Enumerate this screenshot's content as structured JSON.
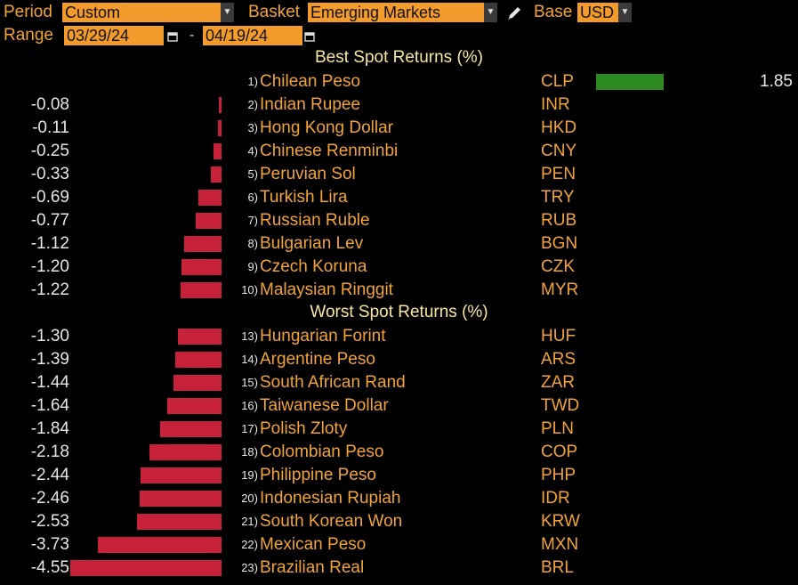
{
  "toolbar": {
    "period_label": "Period",
    "period_value": "Custom",
    "basket_label": "Basket",
    "basket_value": "Emerging Markets",
    "base_label": "Base",
    "base_value": "USD",
    "range_label": "Range",
    "range_start": "03/29/24",
    "range_end": "04/19/24",
    "range_sep": "-",
    "icons": [
      "chevron-down-icon",
      "pencil-icon",
      "calendar-icon"
    ]
  },
  "colors": {
    "accent": "#f29b2c",
    "negative": "#c8213a",
    "positive": "#2e8b22",
    "header": "#f7e7a0"
  },
  "chart_data": {
    "type": "bar",
    "orientation": "horizontal",
    "sections": [
      {
        "title": "Best Spot Returns (%)",
        "rows": [
          {
            "rank": "1)",
            "name": "Chilean Peso",
            "code": "CLP",
            "value": 1.85,
            "label": "1.85"
          },
          {
            "rank": "2)",
            "name": "Indian Rupee",
            "code": "INR",
            "value": -0.08,
            "label": "-0.08"
          },
          {
            "rank": "3)",
            "name": "Hong Kong Dollar",
            "code": "HKD",
            "value": -0.11,
            "label": "-0.11"
          },
          {
            "rank": "4)",
            "name": "Chinese Renminbi",
            "code": "CNY",
            "value": -0.25,
            "label": "-0.25"
          },
          {
            "rank": "5)",
            "name": "Peruvian Sol",
            "code": "PEN",
            "value": -0.33,
            "label": "-0.33"
          },
          {
            "rank": "6)",
            "name": "Turkish Lira",
            "code": "TRY",
            "value": -0.69,
            "label": "-0.69"
          },
          {
            "rank": "7)",
            "name": "Russian Ruble",
            "code": "RUB",
            "value": -0.77,
            "label": "-0.77"
          },
          {
            "rank": "8)",
            "name": "Bulgarian Lev",
            "code": "BGN",
            "value": -1.12,
            "label": "-1.12"
          },
          {
            "rank": "9)",
            "name": "Czech Koruna",
            "code": "CZK",
            "value": -1.2,
            "label": "-1.20"
          },
          {
            "rank": "10)",
            "name": "Malaysian Ringgit",
            "code": "MYR",
            "value": -1.22,
            "label": "-1.22"
          }
        ]
      },
      {
        "title": "Worst Spot Returns (%)",
        "rows": [
          {
            "rank": "13)",
            "name": "Hungarian Forint",
            "code": "HUF",
            "value": -1.3,
            "label": "-1.30"
          },
          {
            "rank": "14)",
            "name": "Argentine Peso",
            "code": "ARS",
            "value": -1.39,
            "label": "-1.39"
          },
          {
            "rank": "15)",
            "name": "South African Rand",
            "code": "ZAR",
            "value": -1.44,
            "label": "-1.44"
          },
          {
            "rank": "16)",
            "name": "Taiwanese Dollar",
            "code": "TWD",
            "value": -1.64,
            "label": "-1.64"
          },
          {
            "rank": "17)",
            "name": "Polish Zloty",
            "code": "PLN",
            "value": -1.84,
            "label": "-1.84"
          },
          {
            "rank": "18)",
            "name": "Colombian Peso",
            "code": "COP",
            "value": -2.18,
            "label": "-2.18"
          },
          {
            "rank": "19)",
            "name": "Philippine Peso",
            "code": "PHP",
            "value": -2.44,
            "label": "-2.44"
          },
          {
            "rank": "20)",
            "name": "Indonesian Rupiah",
            "code": "IDR",
            "value": -2.46,
            "label": "-2.46"
          },
          {
            "rank": "21)",
            "name": "South Korean Won",
            "code": "KRW",
            "value": -2.53,
            "label": "-2.53"
          },
          {
            "rank": "22)",
            "name": "Mexican Peso",
            "code": "MXN",
            "value": -3.73,
            "label": "-3.73"
          },
          {
            "rank": "23)",
            "name": "Brazilian Real",
            "code": "BRL",
            "value": -4.55,
            "label": "-4.55"
          }
        ]
      }
    ]
  }
}
